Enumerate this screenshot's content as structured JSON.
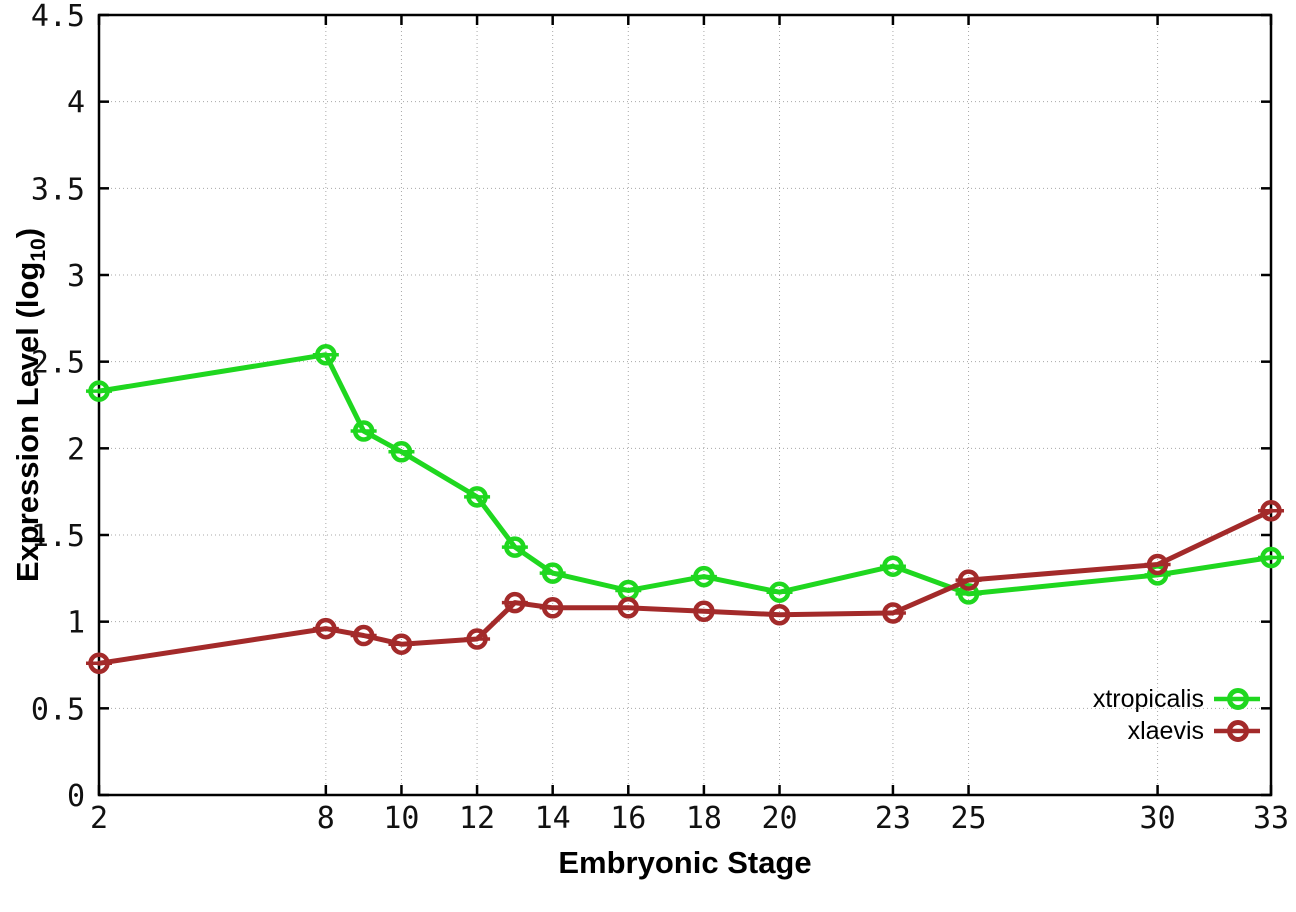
{
  "figure": {
    "xlabel": "Embryonic Stage",
    "ylabel_prefix": "Expression Level (log",
    "ylabel_sub": "10",
    "ylabel_suffix": ")",
    "background": "#ffffff",
    "grid_color": "#a8a8a8",
    "axis_color": "#000000"
  },
  "chart_data": {
    "type": "line",
    "title": "",
    "xlabel": "Embryonic Stage",
    "ylabel": "Expression Level (log10)",
    "x": [
      2,
      8,
      9,
      10,
      12,
      13,
      14,
      16,
      18,
      20,
      23,
      25,
      30,
      33
    ],
    "x_ticks": [
      2,
      8,
      10,
      12,
      14,
      16,
      18,
      20,
      23,
      25,
      30,
      33
    ],
    "x_tick_labels": [
      "2",
      "8",
      "10",
      "12",
      "14",
      "16",
      "18",
      "20",
      "23",
      "25",
      "30",
      "33"
    ],
    "xlim": [
      2,
      33
    ],
    "ylim": [
      0,
      4.5
    ],
    "y_tick_step": 0.5,
    "y_tick_labels": [
      "0",
      "0.5",
      "1",
      "1.5",
      "2",
      "2.5",
      "3",
      "3.5",
      "4",
      "4.5"
    ],
    "grid": true,
    "grid_style": "dotted",
    "legend_position": "bottom-right-inside",
    "marker": "open-circle-with-errorbar-cap",
    "series": [
      {
        "name": "xtropicalis",
        "color": "#1fd71f",
        "values": [
          2.33,
          2.54,
          2.1,
          1.98,
          1.72,
          1.43,
          1.28,
          1.18,
          1.26,
          1.17,
          1.32,
          1.16,
          1.27,
          1.37
        ]
      },
      {
        "name": "xlaevis",
        "color": "#a32a2a",
        "values": [
          0.76,
          0.96,
          0.92,
          0.87,
          0.9,
          1.11,
          1.08,
          1.08,
          1.06,
          1.04,
          1.05,
          1.24,
          1.33,
          1.64
        ]
      }
    ]
  }
}
